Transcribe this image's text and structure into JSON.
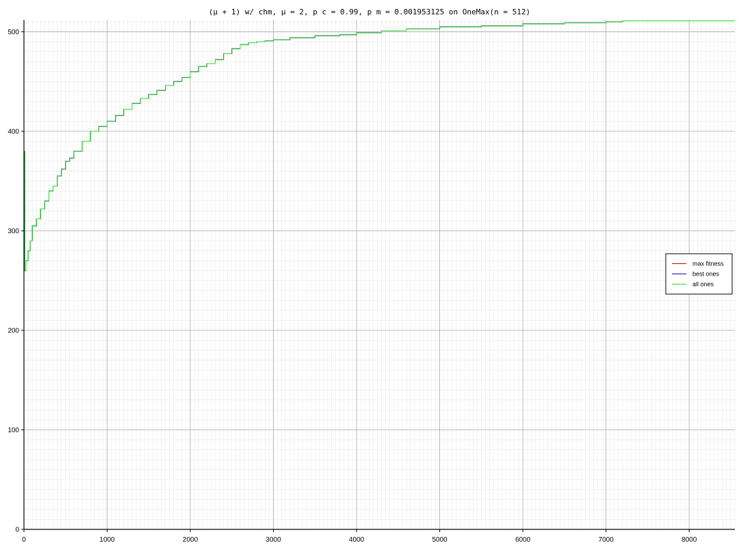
{
  "chart_data": {
    "type": "line",
    "title": "(μ + 1) w/ chm, μ = 2, p c = 0.99, p m = 0.001953125 on OneMax(n = 512)",
    "xlabel": "",
    "ylabel": "",
    "xlim": [
      0,
      8550
    ],
    "ylim": [
      0,
      512
    ],
    "x_ticks": [
      0,
      1000,
      2000,
      3000,
      4000,
      5000,
      6000,
      7000,
      8000
    ],
    "y_ticks": [
      0,
      100,
      200,
      300,
      400,
      500
    ],
    "grid": true,
    "minor_grid": true,
    "legend_position": "right",
    "series": [
      {
        "name": "max fitness",
        "color": "#cc0000",
        "x": [
          0,
          10,
          25,
          50,
          75,
          100,
          150,
          200,
          250,
          300,
          350,
          400,
          450,
          500,
          550,
          600,
          700,
          800,
          900,
          1000,
          1100,
          1200,
          1300,
          1400,
          1500,
          1600,
          1700,
          1800,
          1900,
          2000,
          2100,
          2200,
          2300,
          2400,
          2500,
          2600,
          2700,
          2800,
          2900,
          3000,
          3200,
          3500,
          3800,
          4000,
          4300,
          4600,
          5000,
          5500,
          6000,
          6500,
          7000,
          7200,
          8550
        ],
        "y": [
          380,
          260,
          270,
          280,
          290,
          305,
          312,
          322,
          330,
          340,
          345,
          355,
          362,
          370,
          373,
          380,
          390,
          400,
          405,
          410,
          416,
          422,
          428,
          433,
          437,
          441,
          446,
          450,
          454,
          460,
          465,
          468,
          472,
          478,
          483,
          487,
          489,
          490,
          491,
          492,
          494,
          496,
          497,
          499,
          501,
          503,
          505,
          506,
          508,
          509,
          510,
          511,
          511
        ]
      },
      {
        "name": "best ones",
        "color": "#0000cc",
        "x": [
          0,
          10,
          25,
          50,
          75,
          100,
          150,
          200,
          250,
          300,
          350,
          400,
          450,
          500,
          550,
          600,
          700,
          800,
          900,
          1000,
          1100,
          1200,
          1300,
          1400,
          1500,
          1600,
          1700,
          1800,
          1900,
          2000,
          2100,
          2200,
          2300,
          2400,
          2500,
          2600,
          2700,
          2800,
          2900,
          3000,
          3200,
          3500,
          3800,
          4000,
          4300,
          4600,
          5000,
          5500,
          6000,
          6500,
          7000,
          7200,
          8550
        ],
        "y": [
          380,
          260,
          270,
          280,
          290,
          305,
          312,
          322,
          330,
          340,
          345,
          355,
          362,
          370,
          373,
          380,
          390,
          400,
          405,
          410,
          416,
          422,
          428,
          433,
          437,
          441,
          446,
          450,
          454,
          460,
          465,
          468,
          472,
          478,
          483,
          487,
          489,
          490,
          491,
          492,
          494,
          496,
          497,
          499,
          501,
          503,
          505,
          506,
          508,
          509,
          510,
          511,
          511
        ]
      },
      {
        "name": "all ones",
        "color": "#22dd22",
        "x": [
          0,
          10,
          25,
          50,
          75,
          100,
          150,
          200,
          250,
          300,
          350,
          400,
          450,
          500,
          550,
          600,
          700,
          800,
          900,
          1000,
          1100,
          1200,
          1300,
          1400,
          1500,
          1600,
          1700,
          1800,
          1900,
          2000,
          2100,
          2200,
          2300,
          2400,
          2500,
          2600,
          2700,
          2800,
          2900,
          3000,
          3200,
          3500,
          3800,
          4000,
          4300,
          4600,
          5000,
          5500,
          6000,
          6500,
          7000,
          7200,
          8550
        ],
        "y": [
          380,
          260,
          270,
          280,
          290,
          305,
          312,
          322,
          330,
          340,
          345,
          355,
          362,
          370,
          373,
          380,
          390,
          400,
          405,
          410,
          416,
          422,
          428,
          433,
          437,
          441,
          446,
          450,
          454,
          460,
          465,
          468,
          472,
          478,
          483,
          487,
          489,
          490,
          491,
          492,
          494,
          496,
          497,
          499,
          501,
          503,
          505,
          506,
          508,
          509,
          510,
          511,
          511
        ]
      }
    ]
  }
}
